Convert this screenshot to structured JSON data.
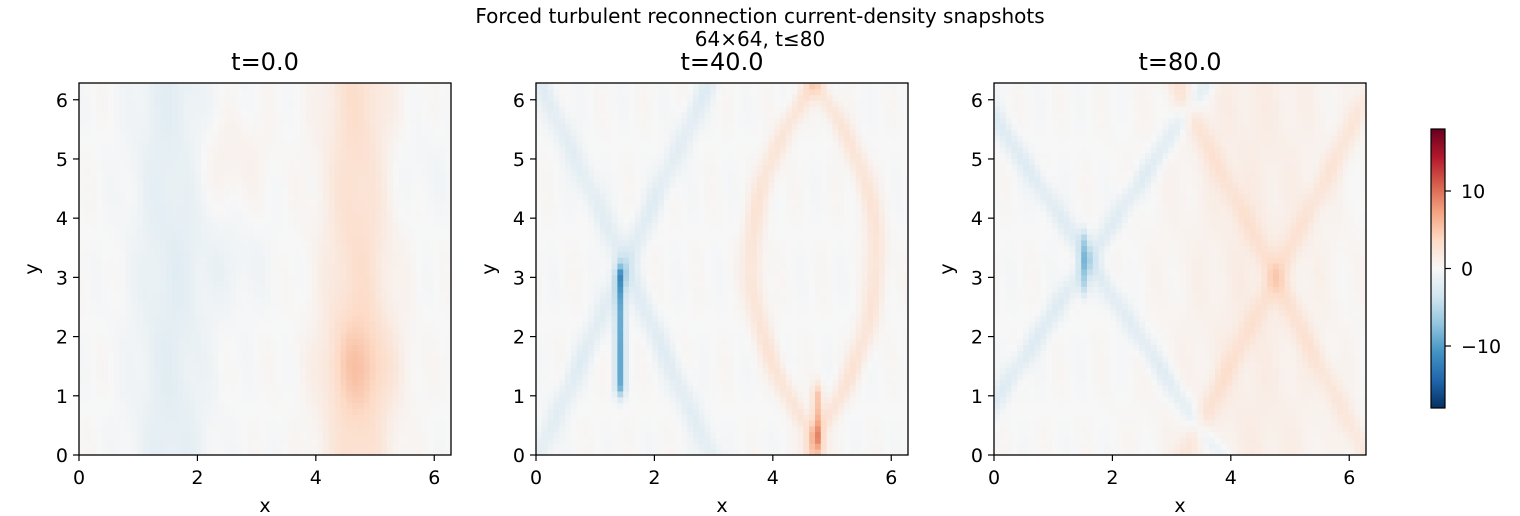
{
  "chart_data": {
    "type": "heatmap",
    "title": "Forced turbulent reconnection current-density snapshots",
    "subtitle": "64×64, t≤80",
    "grid": false,
    "colormap": "RdBu_r",
    "colorbar": {
      "range": [
        -18,
        18
      ],
      "ticks": [
        10,
        0,
        -10
      ],
      "tick_labels": [
        "10",
        "0",
        "−10"
      ]
    },
    "panels": [
      {
        "title": "t=0.0",
        "xlabel": "x",
        "ylabel": "y",
        "xlim": [
          0,
          6.283
        ],
        "ylim": [
          0,
          6.283
        ],
        "xticks": [
          0,
          2,
          4,
          6
        ],
        "yticks": [
          0,
          1,
          2,
          3,
          4,
          5,
          6
        ],
        "resolution": [
          64,
          64
        ],
        "features": [
          {
            "kind": "band",
            "x0": 1.55,
            "width": 0.45,
            "amplitude": -1.8
          },
          {
            "kind": "band",
            "x0": 4.7,
            "width": 0.4,
            "amplitude": 3.0
          },
          {
            "kind": "blob",
            "x": 4.75,
            "y": 1.5,
            "amplitude": 2.2
          },
          {
            "kind": "blob",
            "x": 2.5,
            "y": 5.0,
            "amplitude": 1.0
          },
          {
            "kind": "blob",
            "x": 2.6,
            "y": 3.2,
            "amplitude": -0.8
          },
          {
            "kind": "blob",
            "x": 5.6,
            "y": 4.8,
            "amplitude": -0.6
          }
        ]
      },
      {
        "title": "t=40.0",
        "xlabel": "x",
        "ylabel": "y",
        "xlim": [
          0,
          6.283
        ],
        "ylim": [
          0,
          6.283
        ],
        "xticks": [
          0,
          2,
          4,
          6
        ],
        "yticks": [
          0,
          1,
          2,
          3,
          4,
          5,
          6
        ],
        "resolution": [
          64,
          64
        ],
        "features": [
          {
            "kind": "xcross",
            "x0": 1.5,
            "y0": 3.2,
            "spread": 0.9,
            "amplitude": -2.0
          },
          {
            "kind": "sheet",
            "x0": 1.42,
            "y_range": [
              1.2,
              3.0
            ],
            "amplitude": -9.0
          },
          {
            "kind": "lens",
            "x0": 4.7,
            "y0": 3.3,
            "spread": 1.05,
            "amplitude": 2.4
          },
          {
            "kind": "sheet",
            "x0": 4.75,
            "y_range": [
              0.3,
              1.0
            ],
            "amplitude": 5.0
          }
        ]
      },
      {
        "title": "t=80.0",
        "xlabel": "x",
        "ylabel": "y",
        "xlim": [
          0,
          6.283
        ],
        "ylim": [
          0,
          6.283
        ],
        "xticks": [
          0,
          2,
          4,
          6
        ],
        "yticks": [
          0,
          1,
          2,
          3,
          4,
          5,
          6
        ],
        "resolution": [
          64,
          64
        ],
        "features": [
          {
            "kind": "xcross",
            "x0": 1.6,
            "y0": 3.3,
            "spread": 1.3,
            "amplitude": -2.2
          },
          {
            "kind": "sheet",
            "x0": 1.52,
            "y_range": [
              2.9,
              3.6
            ],
            "amplitude": -4.5
          },
          {
            "kind": "xcross",
            "x0": 4.75,
            "y0": 3.0,
            "spread": 1.0,
            "amplitude": 1.8
          },
          {
            "kind": "band",
            "x0": 4.4,
            "width": 1.0,
            "amplitude": 1.2
          }
        ]
      }
    ]
  }
}
